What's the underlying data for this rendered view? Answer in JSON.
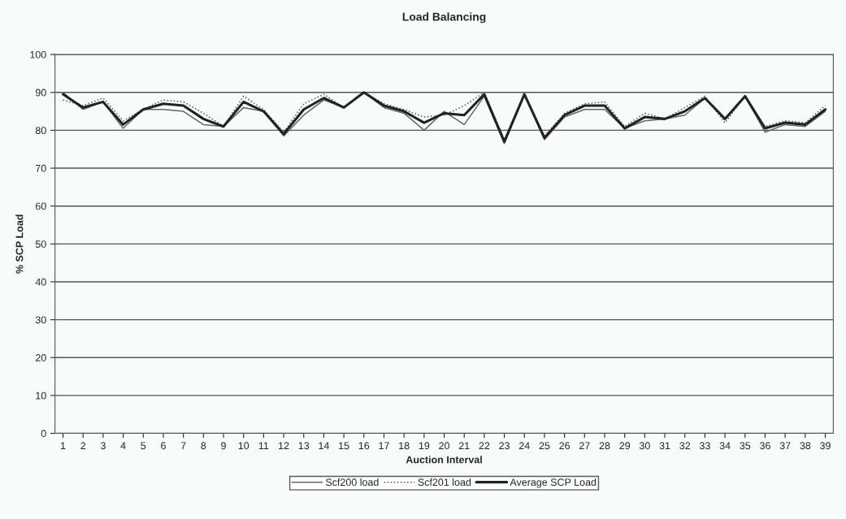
{
  "chart_data": {
    "type": "line",
    "title": "Load Balancing",
    "xlabel": "Auction Interval",
    "ylabel": "% SCP Load",
    "categories": [
      "1",
      "2",
      "3",
      "4",
      "5",
      "6",
      "7",
      "8",
      "9",
      "10",
      "11",
      "12",
      "13",
      "14",
      "15",
      "16",
      "17",
      "18",
      "19",
      "20",
      "21",
      "22",
      "23",
      "24",
      "25",
      "26",
      "27",
      "28",
      "29",
      "30",
      "31",
      "32",
      "33",
      "34",
      "35",
      "36",
      "37",
      "38",
      "39"
    ],
    "series": [
      {
        "name": "Scf200 load",
        "color": "#666666",
        "line_style": "solid",
        "values": [
          90,
          85.5,
          87.5,
          80.5,
          85.5,
          85.5,
          85,
          81.5,
          81,
          86,
          85,
          78.5,
          84,
          88,
          86,
          90,
          86,
          84.5,
          80,
          85,
          81.5,
          89,
          76.5,
          89.5,
          77.5,
          83.5,
          85.5,
          85.5,
          80.5,
          82.5,
          83,
          84,
          88.5,
          83,
          89,
          79.5,
          81.5,
          81,
          85
        ]
      },
      {
        "name": "Scf201 load",
        "color": "#555555",
        "line_style": "dotted",
        "values": [
          88,
          86.5,
          88.5,
          82.5,
          85.5,
          88,
          87.5,
          84.5,
          81,
          89,
          85.5,
          79.5,
          87,
          89.5,
          86,
          90,
          87,
          85.5,
          83.5,
          84,
          86.5,
          90,
          77.5,
          89.5,
          78.5,
          84.5,
          87,
          87.5,
          81,
          84.5,
          83,
          86,
          89,
          82,
          89,
          81,
          82.5,
          82,
          86.5
        ]
      },
      {
        "name": "Average SCP Load",
        "color": "#222222",
        "line_style": "solid",
        "values": [
          89.5,
          86,
          87.5,
          81.5,
          85.5,
          87,
          86.5,
          83,
          81,
          87.5,
          85,
          79,
          85.5,
          88.5,
          86,
          90,
          86.5,
          85,
          82,
          84.5,
          84,
          89.5,
          77,
          89.5,
          78,
          84,
          86.5,
          86.5,
          80.5,
          83.5,
          83,
          85,
          88.5,
          83,
          89,
          80.5,
          82,
          81.5,
          85.5
        ]
      }
    ],
    "ylim": [
      0,
      100
    ],
    "yticks": [
      0,
      10,
      20,
      30,
      40,
      50,
      60,
      70,
      80,
      90,
      100
    ],
    "grid": "y",
    "legend": "bottom",
    "marker": "none"
  }
}
